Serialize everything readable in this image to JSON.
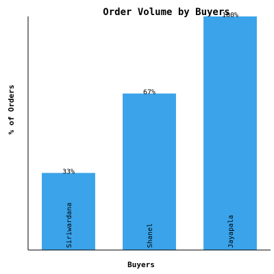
{
  "chart_data": {
    "type": "bar",
    "title": "Order Volume by Buyers",
    "xlabel": "Buyers",
    "ylabel": "% of Orders",
    "categories": [
      "Siriwardana",
      "Shanel",
      "Jayapala"
    ],
    "values": [
      33,
      67,
      100
    ],
    "data_labels": [
      "33%",
      "67%",
      "100%"
    ],
    "ylim": [
      0,
      100
    ],
    "grid": false,
    "bar_color": "#3aa3ea"
  }
}
